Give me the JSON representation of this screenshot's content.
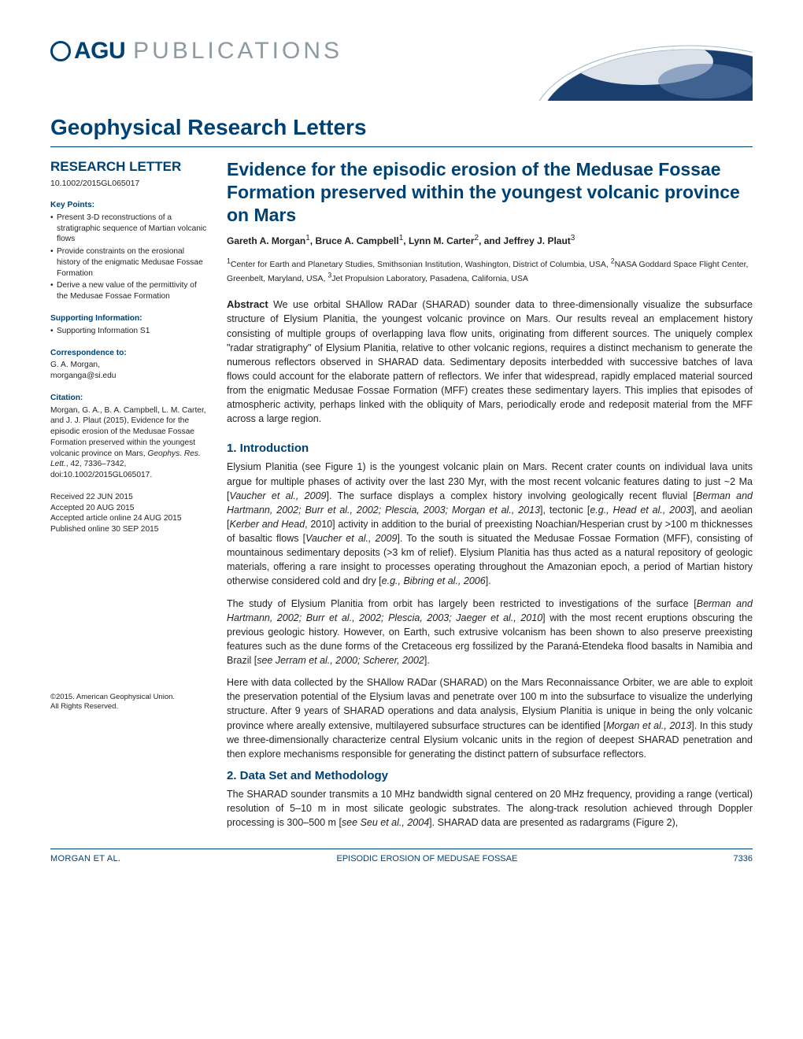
{
  "brand": {
    "logo_text": "AGU",
    "logo_suffix": "PUBLICATIONS",
    "logo_color": "#004174",
    "suffix_color": "#8c9aa2"
  },
  "journal": "Geophysical Research Letters",
  "article_type": "RESEARCH LETTER",
  "doi": "10.1002/2015GL065017",
  "sidebar": {
    "key_points_head": "Key Points:",
    "key_points": [
      "Present 3-D reconstructions of a stratigraphic sequence of Martian volcanic flows",
      "Provide constraints on the erosional history of the enigmatic Medusae Fossae Formation",
      "Derive a new value of the permittivity of the Medusae Fossae Formation"
    ],
    "supporting_head": "Supporting Information:",
    "supporting_items": [
      "Supporting Information S1"
    ],
    "correspondence_head": "Correspondence to:",
    "correspondence_name": "G. A. Morgan,",
    "correspondence_email": "morganga@si.edu",
    "citation_head": "Citation:",
    "citation_text": "Morgan, G. A., B. A. Campbell, L. M. Carter, and J. J. Plaut (2015), Evidence for the episodic erosion of the Medusae Fossae Formation preserved within the youngest volcanic province on Mars, Geophys. Res. Lett., 42, 7336–7342, doi:10.1002/2015GL065017.",
    "dates": {
      "received": "Received 22 JUN 2015",
      "accepted": "Accepted 20 AUG 2015",
      "accepted_online": "Accepted article online 24 AUG 2015",
      "published": "Published online 30 SEP 2015"
    },
    "copyright": "©2015. American Geophysical Union.",
    "rights": "All Rights Reserved."
  },
  "title": "Evidence for the episodic erosion of the Medusae Fossae Formation preserved within the youngest volcanic province on Mars",
  "authors_html": "Gareth A. Morgan<sup>1</sup>, Bruce A. Campbell<sup>1</sup>, Lynn M. Carter<sup>2</sup>, and Jeffrey J. Plaut<sup>3</sup>",
  "affiliations_html": "<sup>1</sup>Center for Earth and Planetary Studies, Smithsonian Institution, Washington, District of Columbia, USA, <sup>2</sup>NASA Goddard Space Flight Center, Greenbelt, Maryland, USA, <sup>3</sup>Jet Propulsion Laboratory, Pasadena, California, USA",
  "abstract_label": "Abstract",
  "abstract_text": "We use orbital SHAllow RADar (SHARAD) sounder data to three-dimensionally visualize the subsurface structure of Elysium Planitia, the youngest volcanic province on Mars. Our results reveal an emplacement history consisting of multiple groups of overlapping lava flow units, originating from different sources. The uniquely complex \"radar stratigraphy\" of Elysium Planitia, relative to other volcanic regions, requires a distinct mechanism to generate the numerous reflectors observed in SHARAD data. Sedimentary deposits interbedded with successive batches of lava flows could account for the elaborate pattern of reflectors. We infer that widespread, rapidly emplaced material sourced from the enigmatic Medusae Fossae Formation (MFF) creates these sedimentary layers. This implies that episodes of atmospheric activity, perhaps linked with the obliquity of Mars, periodically erode and redeposit material from the MFF across a large region.",
  "sections": {
    "intro_title": "1. Introduction",
    "intro_p1": "Elysium Planitia (see Figure 1) is the youngest volcanic plain on Mars. Recent crater counts on individual lava units argue for multiple phases of activity over the last 230 Myr, with the most recent volcanic features dating to just ~2 Ma [Vaucher et al., 2009]. The surface displays a complex history involving geologically recent fluvial [Berman and Hartmann, 2002; Burr et al., 2002; Plescia, 2003; Morgan et al., 2013], tectonic [e.g., Head et al., 2003], and aeolian [Kerber and Head, 2010] activity in addition to the burial of preexisting Noachian/Hesperian crust by >100 m thicknesses of basaltic flows [Vaucher et al., 2009]. To the south is situated the Medusae Fossae Formation (MFF), consisting of mountainous sedimentary deposits (>3 km of relief). Elysium Planitia has thus acted as a natural repository of geologic materials, offering a rare insight to processes operating throughout the Amazonian epoch, a period of Martian history otherwise considered cold and dry [e.g., Bibring et al., 2006].",
    "intro_p2": "The study of Elysium Planitia from orbit has largely been restricted to investigations of the surface [Berman and Hartmann, 2002; Burr et al., 2002; Plescia, 2003; Jaeger et al., 2010] with the most recent eruptions obscuring the previous geologic history. However, on Earth, such extrusive volcanism has been shown to also preserve preexisting features such as the dune forms of the Cretaceous erg fossilized by the Paraná-Etendeka flood basalts in Namibia and Brazil [see Jerram et al., 2000; Scherer, 2002].",
    "intro_p3": "Here with data collected by the SHAllow RADar (SHARAD) on the Mars Reconnaissance Orbiter, we are able to exploit the preservation potential of the Elysium lavas and penetrate over 100 m into the subsurface to visualize the underlying structure. After 9 years of SHARAD operations and data analysis, Elysium Planitia is unique in being the only volcanic province where areally extensive, multilayered subsurface structures can be identified [Morgan et al., 2013]. In this study we three-dimensionally characterize central Elysium volcanic units in the region of deepest SHARAD penetration and then explore mechanisms responsible for generating the distinct pattern of subsurface reflectors.",
    "methods_title": "2. Data Set and Methodology",
    "methods_p1": "The SHARAD sounder transmits a 10 MHz bandwidth signal centered on 20 MHz frequency, providing a range (vertical) resolution of 5–10 m in most silicate geologic substrates. The along-track resolution achieved through Doppler processing is 300–500 m [see Seu et al., 2004]. SHARAD data are presented as radargrams (Figure 2),"
  },
  "footer": {
    "authors": "MORGAN ET AL.",
    "running_title": "EPISODIC EROSION OF MEDUSAE FOSSAE",
    "page": "7336"
  },
  "colors": {
    "primary": "#004174",
    "text": "#231f20",
    "muted": "#8c9aa2"
  }
}
